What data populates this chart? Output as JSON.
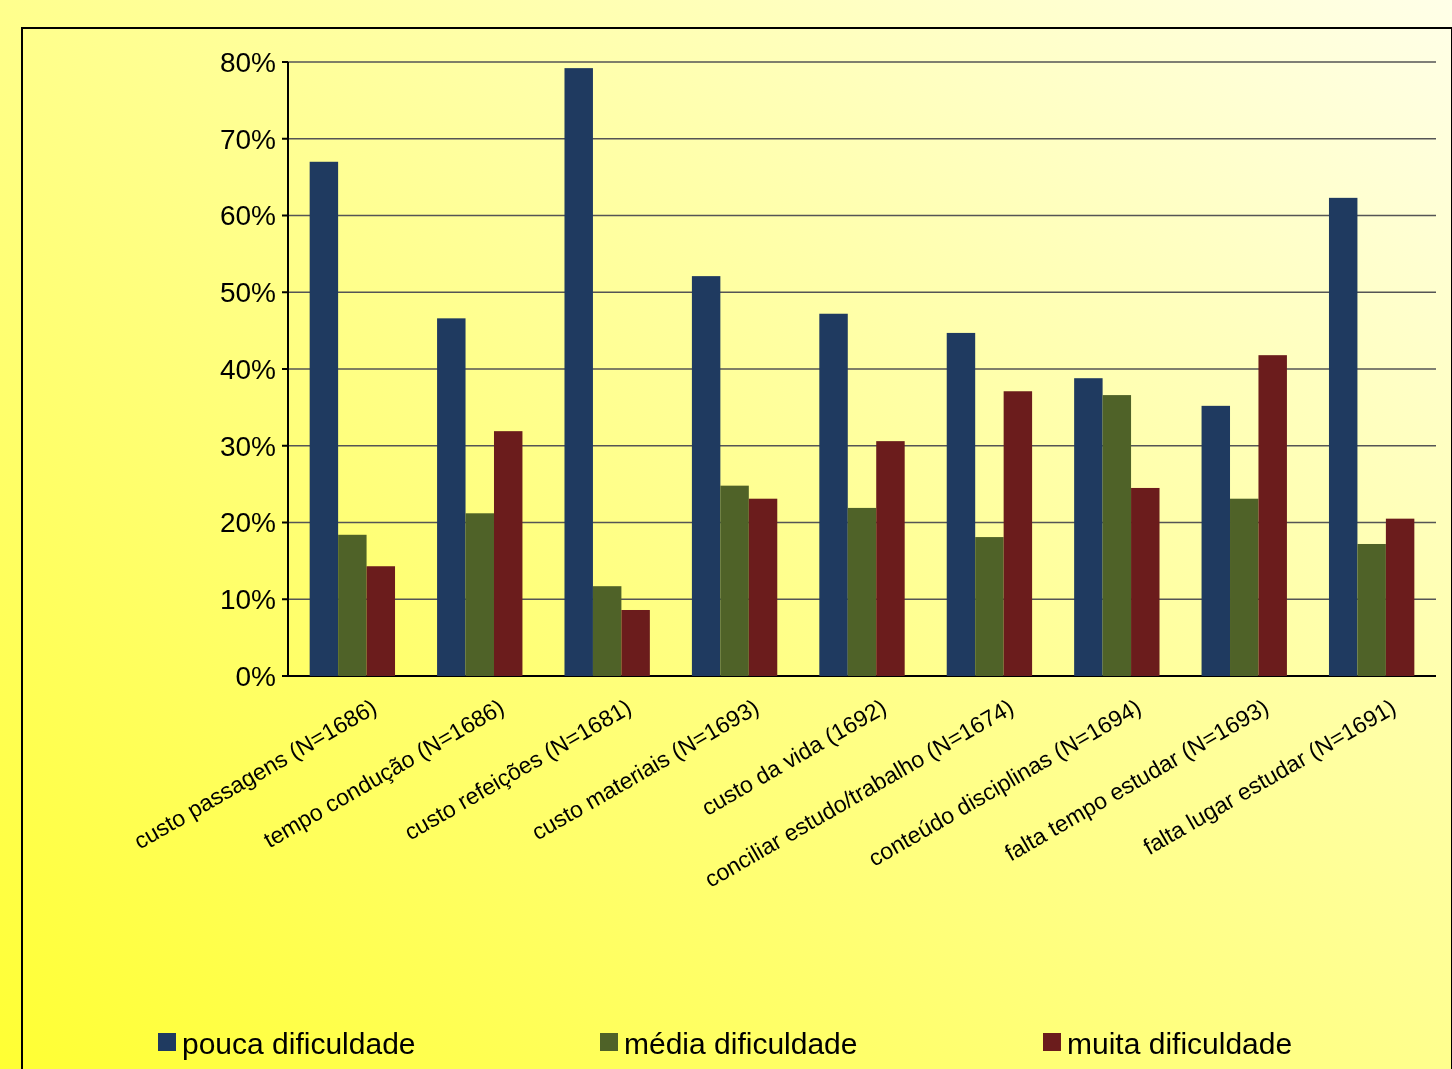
{
  "chart_data": {
    "type": "bar",
    "categories": [
      "custo passagens  (N=1686)",
      "tempo condução  (N=1686)",
      "custo refeições (N=1681)",
      "custo materiais  (N=1693)",
      "custo da vida (1692)",
      "conciliar estudo/trabalho  (N=1674)",
      "conteúdo disciplinas  (N=1694)",
      "falta tempo  estudar  (N=1693)",
      "falta lugar  estudar  (N=1691)"
    ],
    "series": [
      {
        "name": "pouca dificuldade",
        "color": "#1f3a60",
        "values": [
          67,
          46.6,
          79.2,
          52.1,
          47.2,
          44.7,
          38.8,
          35.2,
          62.3
        ]
      },
      {
        "name": "média dificuldade",
        "color": "#4f6228",
        "values": [
          18.4,
          21.2,
          11.7,
          24.8,
          21.9,
          18.1,
          36.6,
          23.1,
          17.2
        ]
      },
      {
        "name": "muita dificuldade",
        "color": "#6b1c1c",
        "values": [
          14.3,
          31.9,
          8.6,
          23.1,
          30.6,
          37.1,
          24.5,
          41.8,
          20.5
        ]
      }
    ],
    "ylim": [
      0,
      80
    ],
    "yticks": [
      {
        "value": 0,
        "label": "0%"
      },
      {
        "value": 10,
        "label": "10%"
      },
      {
        "value": 20,
        "label": "20%"
      },
      {
        "value": 30,
        "label": "30%"
      },
      {
        "value": 40,
        "label": "40%"
      },
      {
        "value": 50,
        "label": "50%"
      },
      {
        "value": 60,
        "label": "60%"
      },
      {
        "value": 70,
        "label": "70%"
      },
      {
        "value": 80,
        "label": "80%"
      }
    ],
    "grid": "y",
    "legend": "bottom"
  }
}
